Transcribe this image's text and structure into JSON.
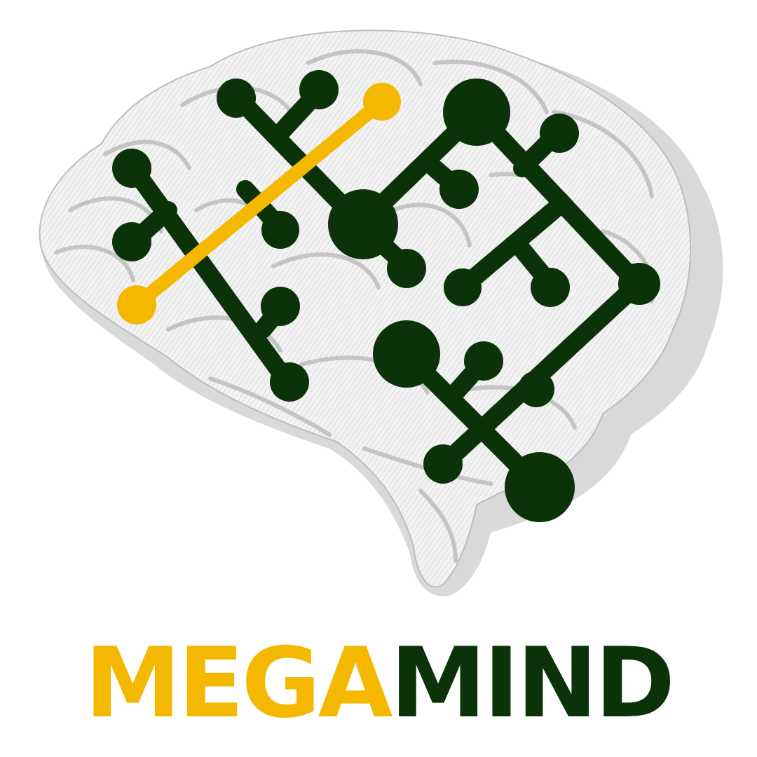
{
  "brand": {
    "word_part_1": "MEGA",
    "word_part_2": "MIND"
  },
  "colors": {
    "accent": "#F4B800",
    "primary": "#0B3209",
    "brain_fill": "#EFEFEF",
    "brain_stroke": "#BDBDBD",
    "brain_shadow": "#D6D6D6",
    "background": "#FFFFFF"
  },
  "icons": {
    "illustration": "brain-icon",
    "overlay": "circuit-network-icon"
  }
}
